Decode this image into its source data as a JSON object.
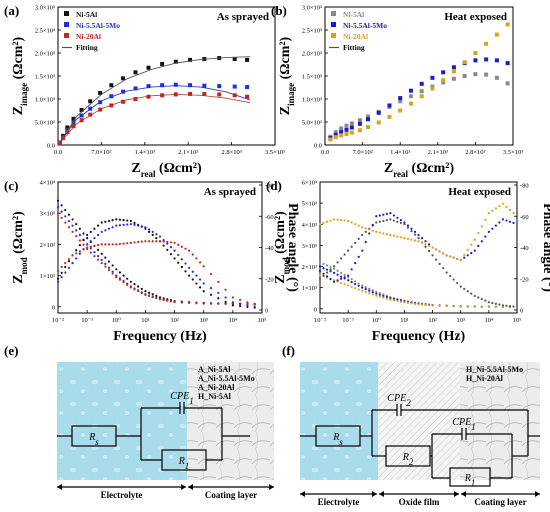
{
  "chart_data": [
    {
      "id": "a",
      "panel_label": "(a)",
      "type": "scatter",
      "title": "As sprayed",
      "xlabel": "Z",
      "xlabel_sub": "real",
      "xlabel_unit": " (Ωcm²)",
      "ylabel": "Z",
      "ylabel_sub": "image",
      "ylabel_unit": " (Ωcm²)",
      "xlim": [
        0,
        3500
      ],
      "ylim": [
        0,
        3000
      ],
      "xticks": [
        "0.0",
        "7.0×10²",
        "1.4×10³",
        "2.1×10³",
        "2.8×10³",
        "3.5×10³"
      ],
      "yticks": [
        "0.0",
        "5.0×10²",
        "1.0×10³",
        "1.5×10³",
        "2.0×10³",
        "2.5×10³",
        "3.0×10³"
      ],
      "legend_position": "top-left",
      "series": [
        {
          "name": "Ni-5Al",
          "color": "#111111",
          "marker": "square",
          "x": [
            30,
            80,
            150,
            250,
            380,
            520,
            680,
            860,
            1050,
            1250,
            1460,
            1680,
            1900,
            2130,
            2360,
            2600,
            2850,
            3050
          ],
          "y": [
            50,
            200,
            380,
            570,
            760,
            950,
            1130,
            1300,
            1450,
            1580,
            1680,
            1760,
            1810,
            1850,
            1870,
            1890,
            1870,
            1850
          ]
        },
        {
          "name": "Ni-5.5Al-5Mo",
          "color": "#1f2ee0",
          "marker": "square",
          "x": [
            30,
            80,
            150,
            250,
            380,
            520,
            680,
            860,
            1050,
            1250,
            1460,
            1680,
            1900,
            2130,
            2360,
            2600,
            2850,
            3050
          ],
          "y": [
            50,
            180,
            330,
            490,
            640,
            790,
            930,
            1060,
            1160,
            1230,
            1280,
            1300,
            1310,
            1300,
            1290,
            1280,
            1270,
            1260
          ]
        },
        {
          "name": "Ni-20Al",
          "color": "#c0281e",
          "marker": "square",
          "x": [
            30,
            80,
            150,
            250,
            380,
            520,
            680,
            860,
            1050,
            1250,
            1460,
            1680,
            1900,
            2130,
            2360,
            2600,
            2850,
            3050
          ],
          "y": [
            40,
            150,
            280,
            410,
            540,
            660,
            770,
            860,
            940,
            1000,
            1050,
            1080,
            1100,
            1110,
            1110,
            1100,
            1080,
            1050
          ]
        },
        {
          "name": "Fitting",
          "color": "#555555",
          "marker": "line",
          "x": [
            0,
            300,
            700,
            1100,
            1500,
            1900,
            2300,
            2700,
            3100
          ],
          "y": [
            0,
            620,
            1100,
            1430,
            1640,
            1780,
            1860,
            1900,
            1920
          ]
        }
      ],
      "extra_lines": [
        {
          "color": "#2e39c8",
          "x": [
            0,
            300,
            700,
            1100,
            1500,
            1900,
            2300,
            2700,
            3100
          ],
          "y": [
            0,
            560,
            960,
            1170,
            1260,
            1290,
            1260,
            1160,
            980
          ]
        },
        {
          "color": "#b54a44",
          "x": [
            0,
            300,
            700,
            1100,
            1500,
            1900,
            2300,
            2700,
            3100
          ],
          "y": [
            0,
            460,
            790,
            980,
            1070,
            1100,
            1080,
            1020,
            920
          ]
        }
      ]
    },
    {
      "id": "b",
      "panel_label": "(b)",
      "type": "scatter",
      "title": "Heat exposed",
      "xlabel": "Z",
      "xlabel_sub": "real",
      "xlabel_unit": " (Ωcm²)",
      "ylabel": "Z",
      "ylabel_sub": "image",
      "ylabel_unit": " (Ωcm²)",
      "xlim": [
        0,
        3500
      ],
      "ylim": [
        0,
        3000
      ],
      "xticks": [
        "0.0",
        "7.0×10²",
        "1.4×10³",
        "2.1×10³",
        "2.8×10³",
        "3.5×10³"
      ],
      "yticks": [
        "0.0",
        "5.0×10²",
        "1.0×10³",
        "1.5×10³",
        "2.0×10³",
        "2.5×10³",
        "3.0×10³"
      ],
      "legend_position": "top-left",
      "series": [
        {
          "name": "Ni-5Al",
          "color": "#8a8a8a",
          "marker": "square",
          "x": [
            100,
            200,
            300,
            400,
            500,
            650,
            800,
            1000,
            1200,
            1400,
            1600,
            1800,
            2000,
            2200,
            2400,
            2600,
            2800,
            3000,
            3200,
            3400
          ],
          "y": [
            180,
            280,
            360,
            420,
            470,
            540,
            620,
            720,
            830,
            950,
            1060,
            1170,
            1270,
            1360,
            1440,
            1500,
            1540,
            1530,
            1460,
            1340
          ]
        },
        {
          "name": "Ni-5.5Al-5Mo",
          "color": "#1a1ad0",
          "marker": "square",
          "x": [
            100,
            200,
            300,
            400,
            500,
            650,
            800,
            1000,
            1200,
            1400,
            1600,
            1800,
            2000,
            2200,
            2400,
            2600,
            2800,
            3000,
            3200,
            3400
          ],
          "y": [
            150,
            220,
            280,
            330,
            380,
            460,
            560,
            700,
            860,
            1020,
            1180,
            1330,
            1460,
            1580,
            1690,
            1780,
            1840,
            1860,
            1840,
            1780
          ]
        },
        {
          "name": "Ni-20Al",
          "color": "#d9a21c",
          "marker": "square",
          "x": [
            100,
            200,
            300,
            400,
            500,
            650,
            800,
            1000,
            1200,
            1400,
            1600,
            1800,
            2000,
            2200,
            2400,
            2600,
            2800,
            3000,
            3200,
            3400
          ],
          "y": [
            120,
            170,
            210,
            240,
            270,
            320,
            390,
            490,
            610,
            750,
            900,
            1060,
            1230,
            1410,
            1600,
            1800,
            2000,
            2200,
            2400,
            2620
          ]
        },
        {
          "name": "Fitting",
          "color": "#555555",
          "marker": "line",
          "x": [],
          "y": []
        }
      ],
      "extra_lines": []
    },
    {
      "id": "c",
      "panel_label": "(c)",
      "type": "line",
      "title": "As sprayed",
      "logx": true,
      "xlabel": "Frequency (Hz)",
      "ylabel": "Z",
      "ylabel_sub": "mod",
      "ylabel_unit": " (Ωcm²)",
      "y2label": "Phase angle (°)",
      "xlim": [
        -2,
        5
      ],
      "ylim": [
        -200,
        4000
      ],
      "y2lim": [
        0,
        -80
      ],
      "xticks": [
        "10⁻²",
        "10⁻¹",
        "10⁰",
        "10¹",
        "10²",
        "10³",
        "10⁴",
        "10⁵"
      ],
      "yticks": [
        "0",
        "1×10³",
        "2×10³",
        "3×10³",
        "4×10³"
      ],
      "y2ticks": [
        "0",
        "-20",
        "-40",
        "-60",
        "-80"
      ],
      "mod_series": [
        {
          "color": "#111111",
          "x": [
            -2,
            -1.5,
            -1,
            -0.5,
            0,
            0.5,
            1,
            1.5,
            2,
            3,
            4,
            5
          ],
          "y": [
            3400,
            2800,
            2200,
            1700,
            1200,
            800,
            500,
            300,
            180,
            120,
            100,
            90
          ]
        },
        {
          "color": "#1f2ee0",
          "x": [
            -2,
            -1.5,
            -1,
            -0.5,
            0,
            0.5,
            1,
            1.5,
            2,
            3,
            4,
            5
          ],
          "y": [
            3200,
            2600,
            2000,
            1500,
            1000,
            650,
            400,
            250,
            160,
            110,
            95,
            90
          ]
        },
        {
          "color": "#c0281e",
          "x": [
            -2,
            -1.5,
            -1,
            -0.5,
            0,
            0.5,
            1,
            1.5,
            2,
            3,
            4,
            5
          ],
          "y": [
            3000,
            2400,
            1850,
            1400,
            950,
            620,
            380,
            240,
            150,
            100,
            90,
            85
          ]
        }
      ],
      "phase_series": [
        {
          "color": "#111111",
          "x": [
            -2,
            -1.5,
            -1,
            -0.5,
            0,
            0.5,
            1,
            1.5,
            2,
            2.5,
            3,
            4,
            5
          ],
          "y": [
            -20,
            -35,
            -48,
            -56,
            -58,
            -57,
            -52,
            -44,
            -33,
            -22,
            -12,
            -3,
            -1
          ]
        },
        {
          "color": "#1f2ee0",
          "x": [
            -2,
            -1.5,
            -1,
            -0.5,
            0,
            0.5,
            1,
            1.5,
            2,
            2.5,
            3,
            4,
            5
          ],
          "y": [
            -18,
            -30,
            -42,
            -50,
            -54,
            -55,
            -53,
            -47,
            -38,
            -27,
            -17,
            -5,
            -1
          ]
        },
        {
          "color": "#c0281e",
          "x": [
            -2,
            -1.5,
            -1,
            -0.5,
            0,
            0.5,
            1,
            1.5,
            2,
            2.5,
            3,
            4,
            5
          ],
          "y": [
            -25,
            -35,
            -40,
            -42,
            -42,
            -43,
            -44,
            -44,
            -43,
            -38,
            -28,
            -8,
            -2
          ]
        }
      ]
    },
    {
      "id": "d",
      "panel_label": "(d)",
      "type": "line",
      "title": "Heat exposed",
      "logx": true,
      "xlabel": "Frequency (Hz)",
      "ylabel": "Z",
      "ylabel_sub": "mod",
      "ylabel_unit": " (Ωcm²)",
      "y2label": "Phase angle (°)",
      "xlim": [
        -2,
        5
      ],
      "ylim": [
        -200,
        6000
      ],
      "y2lim": [
        0,
        -80
      ],
      "xticks": [
        "10⁻²",
        "10⁻¹",
        "10⁰",
        "10¹",
        "10²",
        "10³",
        "10⁴",
        "10⁵"
      ],
      "yticks": [
        "0",
        "1×10³",
        "2×10³",
        "3×10³",
        "4×10³",
        "5×10³",
        "6×10³"
      ],
      "y2ticks": [
        "0",
        "-20",
        "-40",
        "-60",
        "-80"
      ],
      "mod_series": [
        {
          "color": "#8a8a8a",
          "x": [
            -2,
            -1.5,
            -1,
            -0.5,
            0,
            0.5,
            1,
            1.5,
            2,
            3,
            4,
            5
          ],
          "y": [
            2200,
            1900,
            1500,
            1100,
            800,
            550,
            380,
            260,
            180,
            120,
            100,
            90
          ]
        },
        {
          "color": "#1a1ad0",
          "x": [
            -2,
            -1.5,
            -1,
            -0.5,
            0,
            0.5,
            1,
            1.5,
            2,
            3,
            4,
            5
          ],
          "y": [
            2000,
            1700,
            1350,
            1000,
            720,
            500,
            350,
            240,
            170,
            110,
            95,
            90
          ]
        },
        {
          "color": "#d9a21c",
          "x": [
            -2,
            -1.5,
            -1,
            -0.5,
            0,
            0.5,
            1,
            1.5,
            2,
            3,
            4,
            5
          ],
          "y": [
            1600,
            1350,
            1100,
            850,
            620,
            430,
            300,
            210,
            150,
            100,
            90,
            85
          ]
        }
      ],
      "phase_series": [
        {
          "color": "#555555",
          "x": [
            -2,
            -1.5,
            -1,
            -0.5,
            0,
            0.5,
            1,
            1.5,
            2,
            2.5,
            3,
            3.5,
            4,
            4.5,
            5
          ],
          "y": [
            -20,
            -28,
            -38,
            -48,
            -56,
            -58,
            -55,
            -46,
            -35,
            -24,
            -15,
            -9,
            -5,
            -3,
            -2
          ]
        },
        {
          "color": "#1a1ad0",
          "x": [
            -2,
            -1.5,
            -1,
            -0.5,
            0,
            0.5,
            1,
            1.5,
            2,
            2.5,
            3,
            3.5,
            4,
            4.5,
            5
          ],
          "y": [
            -25,
            -18,
            -22,
            -38,
            -60,
            -62,
            -56,
            -48,
            -40,
            -35,
            -32,
            -38,
            -50,
            -58,
            -55
          ]
        },
        {
          "color": "#d9a21c",
          "x": [
            -2,
            -1.5,
            -1,
            -0.5,
            0,
            0.5,
            1,
            1.5,
            2,
            2.5,
            3,
            3.5,
            4,
            4.5,
            5
          ],
          "y": [
            -55,
            -58,
            -57,
            -53,
            -50,
            -48,
            -46,
            -44,
            -40,
            -35,
            -32,
            -45,
            -62,
            -68,
            -60
          ]
        }
      ]
    }
  ],
  "circuits": [
    {
      "panel_label": "(e)",
      "legend": [
        "A_Ni-5Al",
        "A_Ni-5.5Al-5Mo",
        "A_Ni-20Al",
        "H_Ni-5Al"
      ],
      "rs": "R",
      "rs_sub": "s",
      "cpe": "CPE",
      "cpe_sub": "1",
      "r1": "R",
      "r1_sub": "1",
      "region_left": "Electrolyte",
      "region_right": "Coating layer"
    },
    {
      "panel_label": "(f)",
      "legend": [
        "H_Ni-5.5Al-5Mo",
        "H_Ni-20Al"
      ],
      "rs": "R",
      "rs_sub": "s",
      "cpe2": "CPE",
      "cpe2_sub": "2",
      "cpe1": "CPE",
      "cpe1_sub": "1",
      "r2": "R",
      "r2_sub": "2",
      "r1": "R",
      "r1_sub": "1",
      "region_left": "Electrolyte",
      "region_mid": "Oxide film",
      "region_right": "Coating layer"
    }
  ]
}
